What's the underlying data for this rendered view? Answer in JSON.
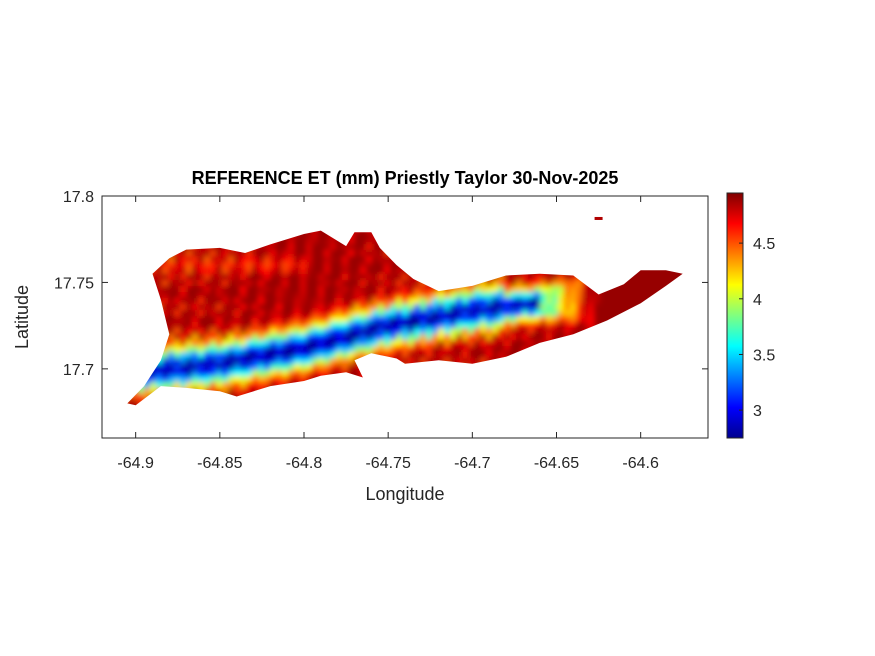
{
  "chart_data": {
    "type": "heatmap",
    "title": "REFERENCE ET (mm) Priestly Taylor 30-Nov-2025",
    "xlabel": "Longitude",
    "ylabel": "Latitude",
    "xlim": [
      -64.92,
      -64.56
    ],
    "ylim": [
      17.66,
      17.8
    ],
    "x_ticks": [
      -64.9,
      -64.85,
      -64.8,
      -64.75,
      -64.7,
      -64.65,
      -64.6
    ],
    "x_tick_labels": [
      "-64.9",
      "-64.85",
      "-64.8",
      "-64.75",
      "-64.7",
      "-64.65",
      "-64.6"
    ],
    "y_ticks": [
      17.7,
      17.75,
      17.8
    ],
    "y_tick_labels": [
      "17.7",
      "17.75",
      "17.8"
    ],
    "grid": false,
    "colormap": "jet",
    "colorbar": {
      "position": "right",
      "clim": [
        2.75,
        4.95
      ],
      "ticks": [
        3,
        3.5,
        4,
        4.5
      ],
      "tick_labels": [
        "3",
        "3.5",
        "4",
        "4.5"
      ]
    },
    "island_outline": [
      [
        -64.9,
        17.679
      ],
      [
        -64.885,
        17.69
      ],
      [
        -64.87,
        17.689
      ],
      [
        -64.85,
        17.687
      ],
      [
        -64.84,
        17.684
      ],
      [
        -64.82,
        17.69
      ],
      [
        -64.8,
        17.693
      ],
      [
        -64.79,
        17.696
      ],
      [
        -64.775,
        17.698
      ],
      [
        -64.765,
        17.695
      ],
      [
        -64.77,
        17.705
      ],
      [
        -64.76,
        17.709
      ],
      [
        -64.745,
        17.706
      ],
      [
        -64.74,
        17.703
      ],
      [
        -64.72,
        17.705
      ],
      [
        -64.7,
        17.703
      ],
      [
        -64.68,
        17.707
      ],
      [
        -64.66,
        17.715
      ],
      [
        -64.64,
        17.72
      ],
      [
        -64.62,
        17.728
      ],
      [
        -64.6,
        17.738
      ],
      [
        -64.585,
        17.748
      ],
      [
        -64.575,
        17.755
      ],
      [
        -64.585,
        17.757
      ],
      [
        -64.6,
        17.757
      ],
      [
        -64.61,
        17.749
      ],
      [
        -64.625,
        17.743
      ],
      [
        -64.64,
        17.754
      ],
      [
        -64.66,
        17.755
      ],
      [
        -64.68,
        17.754
      ],
      [
        -64.7,
        17.748
      ],
      [
        -64.72,
        17.745
      ],
      [
        -64.735,
        17.752
      ],
      [
        -64.745,
        17.76
      ],
      [
        -64.755,
        17.77
      ],
      [
        -64.76,
        17.779
      ],
      [
        -64.77,
        17.779
      ],
      [
        -64.775,
        17.771
      ],
      [
        -64.79,
        17.78
      ],
      [
        -64.8,
        17.778
      ],
      [
        -64.82,
        17.772
      ],
      [
        -64.835,
        17.767
      ],
      [
        -64.85,
        17.77
      ],
      [
        -64.87,
        17.769
      ],
      [
        -64.88,
        17.764
      ],
      [
        -64.89,
        17.755
      ],
      [
        -64.885,
        17.74
      ],
      [
        -64.88,
        17.72
      ],
      [
        -64.885,
        17.705
      ],
      [
        -64.895,
        17.69
      ],
      [
        -64.905,
        17.68
      ]
    ],
    "valley_axis": [
      [
        -64.89,
        17.699
      ],
      [
        -64.85,
        17.703
      ],
      [
        -64.8,
        17.712
      ],
      [
        -64.75,
        17.725
      ],
      [
        -64.7,
        17.734
      ],
      [
        -64.68,
        17.736
      ],
      [
        -64.62,
        17.742
      ]
    ],
    "value_range_shown": [
      2.8,
      4.9
    ],
    "islet": [
      -64.625,
      17.787
    ]
  }
}
